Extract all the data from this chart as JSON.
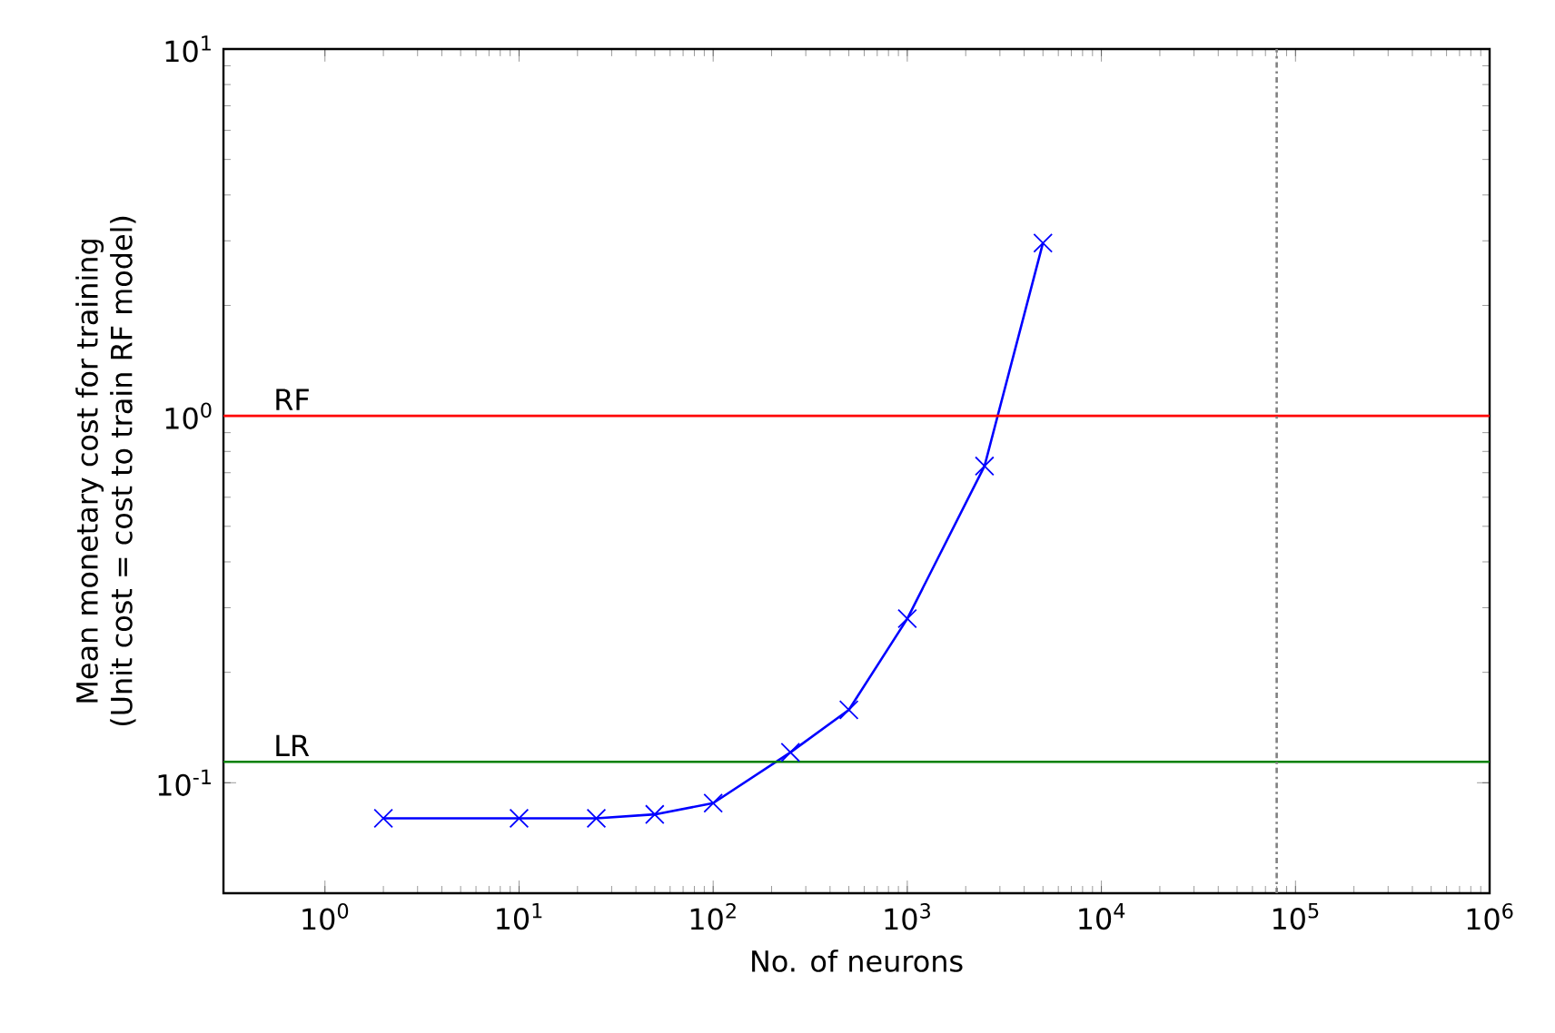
{
  "chart_data": {
    "type": "line",
    "xlabel": "No. of neurons",
    "ylabel": "Mean monetary cost for training\n(Unit cost = cost to train RF model)",
    "x": [
      2,
      10,
      25,
      50,
      100,
      250,
      500,
      1000,
      2500,
      5000
    ],
    "series": [
      {
        "color": "#0000ff",
        "values": [
          0.08,
          0.08,
          0.08,
          0.082,
          0.088,
          0.121,
          0.158,
          0.28,
          0.73,
          2.96
        ]
      }
    ],
    "log": "xy",
    "xlim": [
      0.3,
      1000000
    ],
    "ylim": [
      0.05,
      10
    ],
    "xticks": [
      {
        "value": 1,
        "label": "10$^{0}$"
      },
      {
        "value": 10,
        "label": "10$^{1}$"
      },
      {
        "value": 100,
        "label": "10$^{2}$"
      },
      {
        "value": 1000,
        "label": "10$^{3}$"
      },
      {
        "value": 10000,
        "label": "10$^{4}$"
      },
      {
        "value": 100000,
        "label": "10$^{5}$"
      },
      {
        "value": 1000000,
        "label": "10$^{6}$"
      }
    ],
    "yticks": [
      {
        "value": 0.1,
        "label": "10$^{-1}$"
      },
      {
        "value": 1,
        "label": "10$^{0}$"
      },
      {
        "value": 10,
        "label": "10$^{1}$"
      }
    ],
    "ref_lines": [
      {
        "axis": "y",
        "value": 1,
        "label": "RF",
        "color": "#ff0000"
      },
      {
        "axis": "y",
        "value": 0.114,
        "label": "LR",
        "color": "#008000"
      },
      {
        "axis": "x",
        "value": 80000,
        "color": "#808080",
        "line_style": "dashdot"
      }
    ],
    "marker": "cross",
    "line_style": "solid",
    "grid": false
  }
}
